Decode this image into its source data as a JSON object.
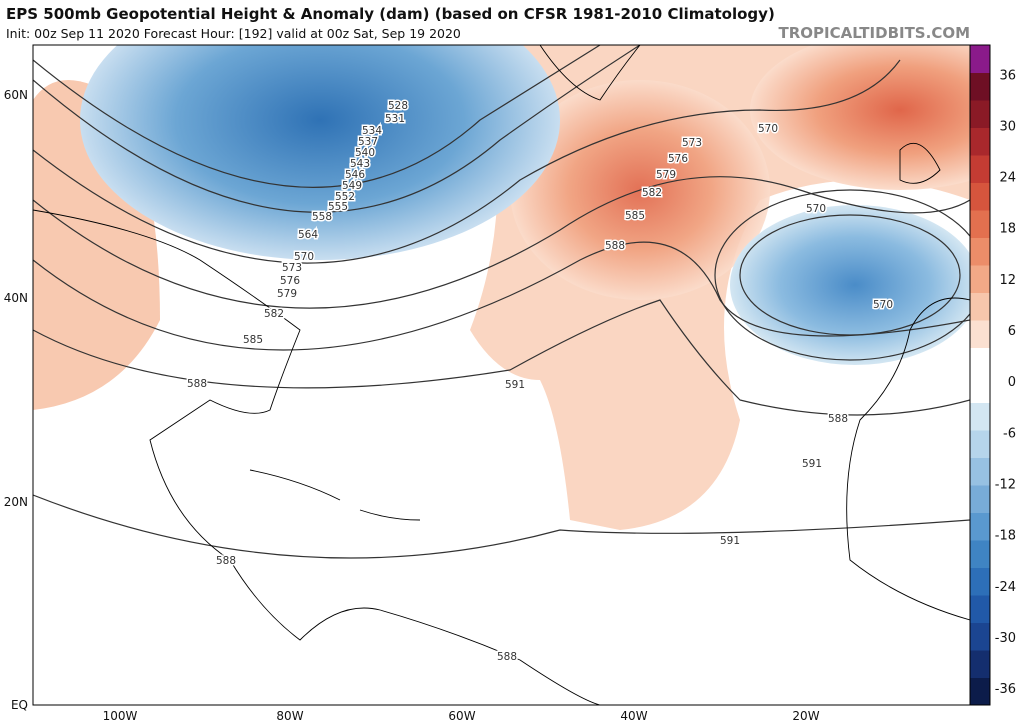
{
  "header": {
    "title": "EPS 500mb Geopotential Height & Anomaly (dam) (based on CFSR 1981-2010 Climatology)",
    "subtitle": "Init: 00z Sep 11 2020   Forecast Hour: [192]   valid at 00z Sat, Sep 19 2020",
    "brand": "TROPICALTIDBITS.COM"
  },
  "map": {
    "lat_labels": [
      "60N",
      "40N",
      "20N",
      "EQ"
    ],
    "lon_labels": [
      "100W",
      "80W",
      "60W",
      "40W",
      "20W"
    ],
    "contour_labels": [
      528,
      531,
      534,
      537,
      540,
      543,
      546,
      549,
      552,
      555,
      558,
      564,
      570,
      573,
      576,
      579,
      582,
      585,
      588,
      591,
      570,
      573,
      576,
      579,
      582,
      585,
      588,
      570,
      570,
      588,
      591,
      591,
      588,
      588
    ]
  },
  "colorbar": {
    "ticks": [
      36,
      30,
      24,
      18,
      12,
      6,
      0,
      -6,
      -12,
      -18,
      -24,
      -30,
      -36
    ],
    "colors": [
      "#0c1c4a",
      "#142e6e",
      "#1b4591",
      "#2159a8",
      "#2d6fb8",
      "#3f84c3",
      "#5a99cf",
      "#78acd8",
      "#97c1e2",
      "#b6d5eb",
      "#d3e6f2",
      "#ffffff",
      "#ffffff",
      "#fbe0d1",
      "#f7c6ac",
      "#f2a987",
      "#ec8d69",
      "#e3704f",
      "#d6553d",
      "#c43c33",
      "#a9282c",
      "#8a1a26",
      "#6e0f24",
      "#8a1a8a"
    ]
  }
}
